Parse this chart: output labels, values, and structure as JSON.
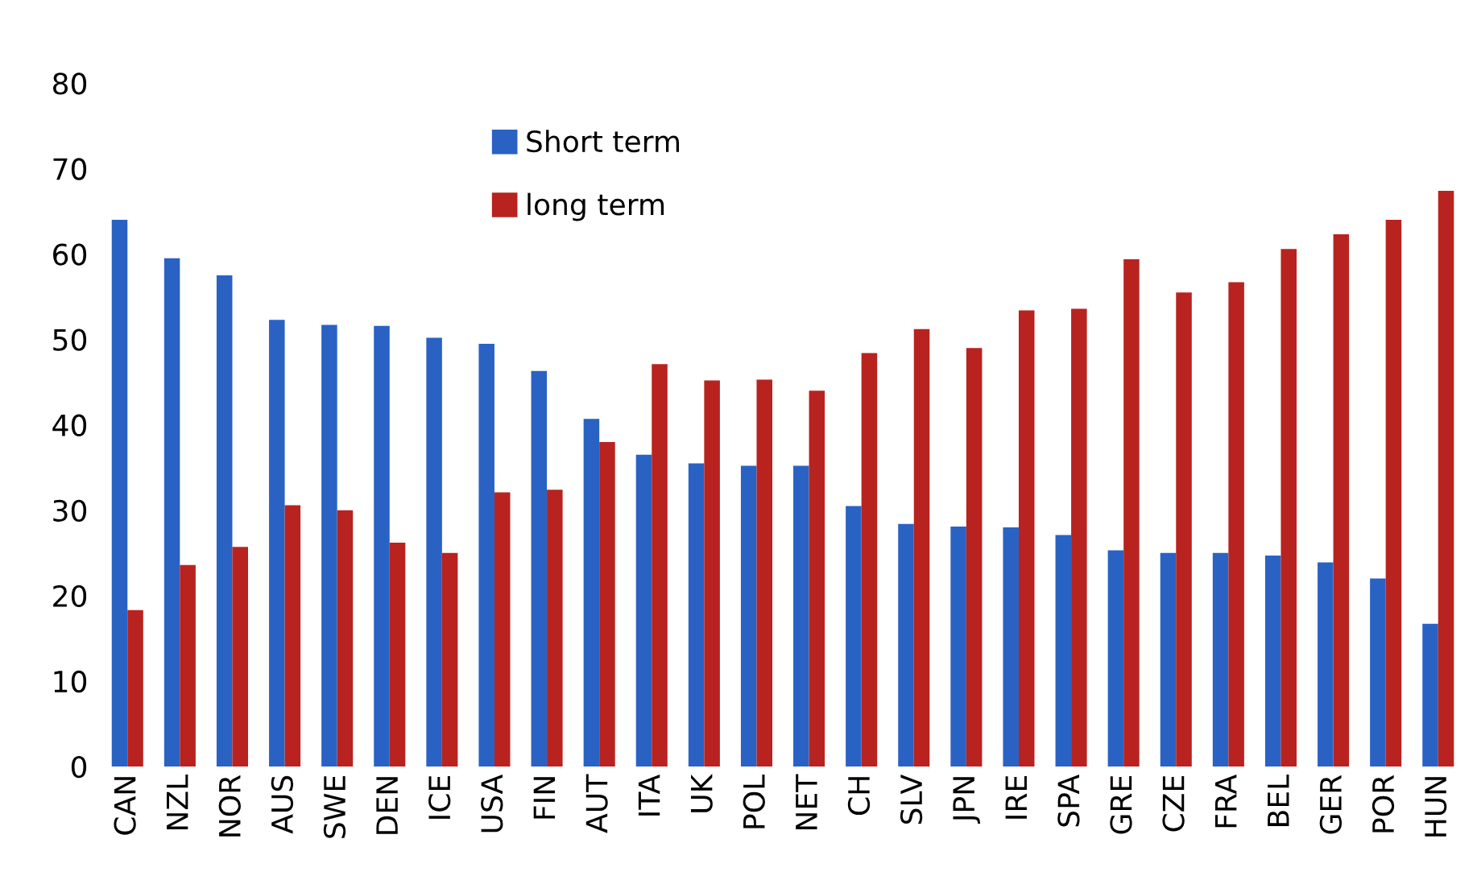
{
  "chart_data": {
    "type": "bar",
    "categories": [
      "CAN",
      "NZL",
      "NOR",
      "AUS",
      "SWE",
      "DEN",
      "ICE",
      "USA",
      "FIN",
      "AUT",
      "ITA",
      "UK",
      "POL",
      "NET",
      "CH",
      "SLV",
      "JPN",
      "IRE",
      "SPA",
      "GRE",
      "CZE",
      "FRA",
      "BEL",
      "GER",
      "POR",
      "HUN"
    ],
    "series": [
      {
        "name": "Short term",
        "color": "#2a62c4",
        "values": [
          64,
          59.5,
          57.5,
          52.3,
          51.7,
          51.6,
          50.2,
          49.5,
          46.3,
          40.7,
          36.5,
          35.5,
          35.2,
          35.2,
          30.5,
          28.4,
          28.1,
          28,
          27.1,
          25.3,
          25,
          25,
          24.7,
          23.9,
          22,
          16.7
        ]
      },
      {
        "name": "long term",
        "color": "#b8231f",
        "values": [
          18.3,
          23.6,
          25.7,
          30.6,
          30,
          26.2,
          25,
          32.1,
          32.4,
          38,
          47.1,
          45.2,
          45.3,
          44,
          48.4,
          51.2,
          49,
          53.4,
          53.6,
          59.4,
          55.5,
          56.7,
          60.6,
          62.3,
          64,
          67.4
        ]
      }
    ],
    "ylim": [
      0,
      80
    ],
    "yticks": [
      0,
      10,
      20,
      30,
      40,
      50,
      60,
      70,
      80
    ],
    "grid": false,
    "legend": "top"
  }
}
